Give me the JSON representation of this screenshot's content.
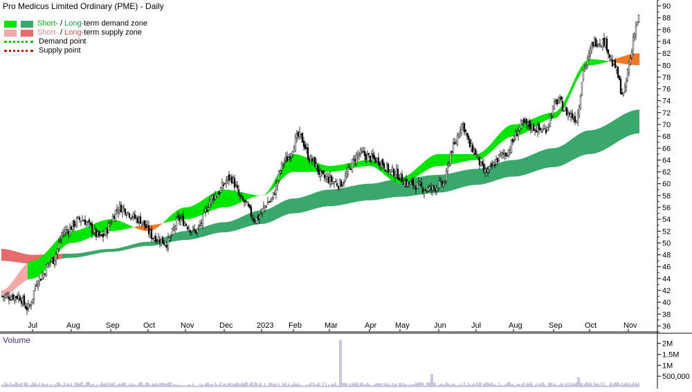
{
  "title": "Pro Medicus Limited Ordinary (PME) - Daily",
  "legend": {
    "demand_zone": {
      "short": "Short-",
      "sep": " / ",
      "long": "Long-",
      "rest": "term demand zone"
    },
    "supply_zone": {
      "short": "Short-",
      "sep": " / ",
      "long": "Long-",
      "rest": "term supply zone"
    },
    "demand_point": "Demand point",
    "supply_point": "Supply point"
  },
  "colors": {
    "short_demand": "#00e600",
    "long_demand": "#3aa86b",
    "short_supply": "#f2aaa8",
    "long_supply": "#e86a6a",
    "demand_point": "#00cc00",
    "supply_point": "#e00000",
    "cloud_orange": "#f07a28",
    "volume_label": "#4b2a8a",
    "candle": "#000000"
  },
  "chart_data": [
    {
      "type": "candlestick",
      "title": "Pro Medicus Limited Ordinary (PME) - Daily",
      "x_tick_labels": [
        "Jul",
        "Aug",
        "Sep",
        "Oct",
        "Nov",
        "Dec",
        "2023",
        "Feb",
        "Mar",
        "Apr",
        "May",
        "Jun",
        "Jul",
        "Aug",
        "Sep",
        "Oct",
        "Nov"
      ],
      "y_tick_labels": [
        "36",
        "38",
        "40",
        "42",
        "44",
        "46",
        "48",
        "50",
        "52",
        "54",
        "56",
        "58",
        "60",
        "62",
        "64",
        "66",
        "68",
        "70",
        "72",
        "74",
        "76",
        "78",
        "80",
        "82",
        "84",
        "86",
        "88",
        "90"
      ],
      "ylim": [
        35,
        91
      ],
      "close_keypoints": [
        {
          "x": "Jun 2022",
          "y": 41
        },
        {
          "x": "Jun 2022",
          "y": 39
        },
        {
          "x": "Jul 2022",
          "y": 44
        },
        {
          "x": "Jul 2022",
          "y": 47
        },
        {
          "x": "Jul 2022",
          "y": 52
        },
        {
          "x": "Aug 2022",
          "y": 54
        },
        {
          "x": "Aug 2022",
          "y": 51
        },
        {
          "x": "Sep 2022",
          "y": 56
        },
        {
          "x": "Sep 2022",
          "y": 54
        },
        {
          "x": "Oct 2022",
          "y": 51
        },
        {
          "x": "Oct 2022",
          "y": 50
        },
        {
          "x": "Oct 2022",
          "y": 54
        },
        {
          "x": "Nov 2022",
          "y": 52
        },
        {
          "x": "Nov 2022",
          "y": 58
        },
        {
          "x": "Dec 2022",
          "y": 61
        },
        {
          "x": "Dec 2022",
          "y": 57
        },
        {
          "x": "Dec 2022",
          "y": 54
        },
        {
          "x": "Jan 2023",
          "y": 57
        },
        {
          "x": "Jan 2023",
          "y": 64
        },
        {
          "x": "Feb 2023",
          "y": 68
        },
        {
          "x": "Feb 2023",
          "y": 64
        },
        {
          "x": "Feb 2023",
          "y": 61
        },
        {
          "x": "Mar 2023",
          "y": 60
        },
        {
          "x": "Mar 2023",
          "y": 65
        },
        {
          "x": "Apr 2023",
          "y": 64
        },
        {
          "x": "Apr 2023",
          "y": 62
        },
        {
          "x": "May 2023",
          "y": 60
        },
        {
          "x": "May 2023",
          "y": 59
        },
        {
          "x": "Jun 2023",
          "y": 60
        },
        {
          "x": "Jun 2023",
          "y": 66
        },
        {
          "x": "Jun 2023",
          "y": 70
        },
        {
          "x": "Jun 2023",
          "y": 66
        },
        {
          "x": "Jul 2023",
          "y": 62
        },
        {
          "x": "Jul 2023",
          "y": 65
        },
        {
          "x": "Aug 2023",
          "y": 70
        },
        {
          "x": "Aug 2023",
          "y": 69
        },
        {
          "x": "Sep 2023",
          "y": 74
        },
        {
          "x": "Sep 2023",
          "y": 72
        },
        {
          "x": "Sep 2023",
          "y": 71
        },
        {
          "x": "Sep 2023",
          "y": 80
        },
        {
          "x": "Oct 2023",
          "y": 84
        },
        {
          "x": "Oct 2023",
          "y": 84
        },
        {
          "x": "Oct 2023",
          "y": 80
        },
        {
          "x": "Oct 2023",
          "y": 75
        },
        {
          "x": "Nov 2023",
          "y": 81
        },
        {
          "x": "Nov 2023",
          "y": 86
        },
        {
          "x": "Nov 2023",
          "y": 88
        }
      ],
      "short_term_zone": {
        "name": "Short-term demand / supply zone",
        "lower_keypoints": [
          {
            "x": "Jun 2022",
            "y": 41
          },
          {
            "x": "Jul 2022",
            "y": 44
          },
          {
            "x": "Aug 2022",
            "y": 50
          },
          {
            "x": "Sep 2022",
            "y": 52
          },
          {
            "x": "Oct 2022",
            "y": 53
          },
          {
            "x": "Nov 2022",
            "y": 54
          },
          {
            "x": "Dec 2022",
            "y": 56
          },
          {
            "x": "Jan 2023",
            "y": 58
          },
          {
            "x": "Feb 2023",
            "y": 62
          },
          {
            "x": "Mar 2023",
            "y": 62
          },
          {
            "x": "Apr 2023",
            "y": 63
          },
          {
            "x": "May 2023",
            "y": 60
          },
          {
            "x": "Jun 2023",
            "y": 63
          },
          {
            "x": "Jul 2023",
            "y": 64
          },
          {
            "x": "Aug 2023",
            "y": 68
          },
          {
            "x": "Sep 2023",
            "y": 71
          },
          {
            "x": "Oct 2023",
            "y": 80
          },
          {
            "x": "Nov 2023",
            "y": 82
          }
        ],
        "upper_keypoints": [
          {
            "x": "Jun 2022",
            "y": 42
          },
          {
            "x": "Jul 2022",
            "y": 47
          },
          {
            "x": "Aug 2022",
            "y": 52
          },
          {
            "x": "Sep 2022",
            "y": 54
          },
          {
            "x": "Oct 2022",
            "y": 52
          },
          {
            "x": "Nov 2022",
            "y": 56
          },
          {
            "x": "Dec 2022",
            "y": 59
          },
          {
            "x": "Jan 2023",
            "y": 58
          },
          {
            "x": "Feb 2023",
            "y": 65
          },
          {
            "x": "Mar 2023",
            "y": 63
          },
          {
            "x": "Apr 2023",
            "y": 64
          },
          {
            "x": "May 2023",
            "y": 61
          },
          {
            "x": "Jun 2023",
            "y": 65
          },
          {
            "x": "Jul 2023",
            "y": 65
          },
          {
            "x": "Aug 2023",
            "y": 70
          },
          {
            "x": "Sep 2023",
            "y": 72
          },
          {
            "x": "Oct 2023",
            "y": 81
          },
          {
            "x": "Nov 2023",
            "y": 80
          }
        ]
      },
      "long_term_zone": {
        "name": "Long-term demand / supply zone",
        "lower_keypoints": [
          {
            "x": "Jun 2022",
            "y": 47
          },
          {
            "x": "Jul 2022",
            "y": 46.5
          },
          {
            "x": "Aug 2022",
            "y": 47.5
          },
          {
            "x": "Sep 2022",
            "y": 48.5
          },
          {
            "x": "Oct 2022",
            "y": 49.5
          },
          {
            "x": "Nov 2022",
            "y": 50.5
          },
          {
            "x": "Dec 2022",
            "y": 51.8
          },
          {
            "x": "Jan 2023",
            "y": 53.2
          },
          {
            "x": "Feb 2023",
            "y": 55
          },
          {
            "x": "Mar 2023",
            "y": 56.2
          },
          {
            "x": "Apr 2023",
            "y": 57.2
          },
          {
            "x": "May 2023",
            "y": 57.8
          },
          {
            "x": "Jun 2023",
            "y": 58.5
          },
          {
            "x": "Jul 2023",
            "y": 59.8
          },
          {
            "x": "Aug 2023",
            "y": 61.2
          },
          {
            "x": "Sep 2023",
            "y": 62.8
          },
          {
            "x": "Oct 2023",
            "y": 65
          },
          {
            "x": "Nov 2023",
            "y": 68.5
          }
        ],
        "upper_keypoints": [
          {
            "x": "Jun 2022",
            "y": 49
          },
          {
            "x": "Jul 2022",
            "y": 48
          },
          {
            "x": "Aug 2022",
            "y": 48.2
          },
          {
            "x": "Sep 2022",
            "y": 49
          },
          {
            "x": "Oct 2022",
            "y": 50.2
          },
          {
            "x": "Nov 2022",
            "y": 52
          },
          {
            "x": "Dec 2022",
            "y": 53.5
          },
          {
            "x": "Jan 2023",
            "y": 55.5
          },
          {
            "x": "Feb 2023",
            "y": 57.5
          },
          {
            "x": "Mar 2023",
            "y": 59
          },
          {
            "x": "Apr 2023",
            "y": 60
          },
          {
            "x": "May 2023",
            "y": 60.8
          },
          {
            "x": "Jun 2023",
            "y": 61.5
          },
          {
            "x": "Jul 2023",
            "y": 62.5
          },
          {
            "x": "Aug 2023",
            "y": 64
          },
          {
            "x": "Sep 2023",
            "y": 66
          },
          {
            "x": "Oct 2023",
            "y": 69
          },
          {
            "x": "Nov 2023",
            "y": 72.5
          }
        ]
      }
    },
    {
      "type": "bar",
      "title": "Volume",
      "y_tick_labels": [
        "500,000",
        "1M",
        "1.5M",
        "2M"
      ],
      "ylim": [
        0,
        2400000
      ],
      "typical_volume": 150000,
      "spikes": [
        {
          "x": "Feb 2023",
          "value": 2150000
        },
        {
          "x": "Jun 2023",
          "value": 600000
        },
        {
          "x": "Sep 2023",
          "value": 450000
        }
      ]
    }
  ]
}
